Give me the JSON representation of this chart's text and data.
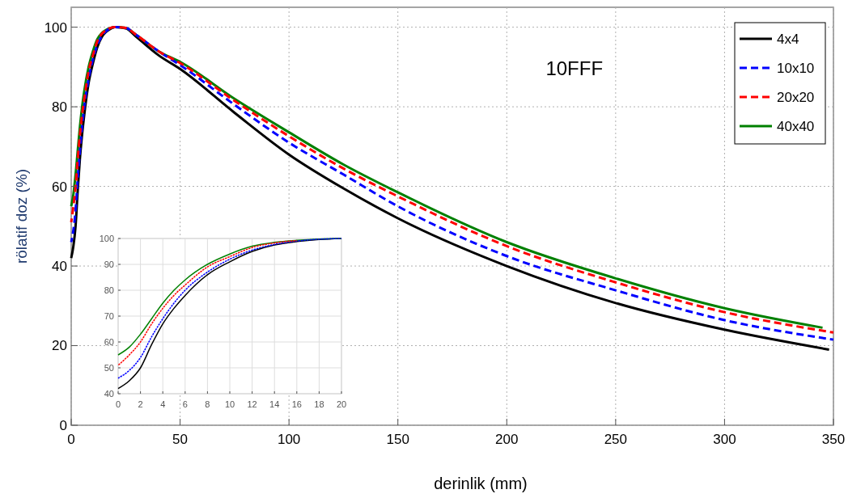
{
  "chart_data": [
    {
      "type": "line",
      "title": "10FFF",
      "xlabel": "derinlik (mm)",
      "ylabel": "rölatif doz (%)",
      "xlim": [
        0,
        350
      ],
      "ylim": [
        0,
        105
      ],
      "xticks": [
        0,
        50,
        100,
        150,
        200,
        250,
        300,
        350
      ],
      "yticks": [
        0,
        20,
        40,
        60,
        80,
        100
      ],
      "grid": true,
      "legend": "top right",
      "series": [
        {
          "name": "4x4",
          "color": "#000000",
          "line_style": "solid",
          "x": [
            0,
            1,
            2,
            3,
            4,
            5,
            6,
            8,
            10,
            12,
            14,
            16,
            18,
            20,
            25,
            30,
            40,
            50,
            75,
            100,
            125,
            150,
            200,
            250,
            300,
            348
          ],
          "values": [
            42,
            45,
            50,
            59,
            67,
            73,
            78,
            86,
            91,
            95,
            97.5,
            98.8,
            99.6,
            100,
            99.7,
            97.5,
            93,
            89.5,
            78.5,
            68,
            59.5,
            52,
            40,
            30.7,
            24,
            19
          ]
        },
        {
          "name": "10x10",
          "color": "#0000ff",
          "line_style": "dashed",
          "x": [
            0,
            1,
            2,
            3,
            4,
            5,
            6,
            8,
            10,
            12,
            14,
            16,
            18,
            20,
            25,
            30,
            40,
            50,
            75,
            100,
            125,
            150,
            200,
            250,
            300,
            350
          ],
          "values": [
            46,
            49,
            54,
            62,
            69,
            75,
            80,
            87,
            92,
            95.5,
            97.7,
            99,
            99.7,
            100,
            99.8,
            98,
            94,
            90.5,
            80.5,
            71,
            63,
            55,
            42.5,
            33.9,
            26.4,
            21.5
          ]
        },
        {
          "name": "20x20",
          "color": "#ff0000",
          "line_style": "dashed",
          "x": [
            0,
            1,
            2,
            3,
            4,
            5,
            6,
            8,
            10,
            12,
            14,
            16,
            18,
            20,
            25,
            30,
            40,
            50,
            75,
            100,
            125,
            150,
            200,
            250,
            300,
            350
          ],
          "values": [
            51,
            55,
            60,
            67,
            73,
            78,
            82,
            89,
            93,
            96.5,
            98.3,
            99.2,
            99.8,
            100,
            99.8,
            98,
            94,
            91,
            81.5,
            72.6,
            64.5,
            57.5,
            45,
            35.9,
            28.4,
            23.3
          ]
        },
        {
          "name": "40x40",
          "color": "#008000",
          "line_style": "solid",
          "x": [
            0,
            1,
            2,
            3,
            4,
            5,
            6,
            8,
            10,
            12,
            14,
            16,
            18,
            20,
            25,
            30,
            40,
            50,
            75,
            100,
            125,
            150,
            200,
            250,
            300,
            345
          ],
          "values": [
            55,
            58,
            63,
            69,
            75,
            80,
            84,
            90,
            94,
            97,
            98.5,
            99.3,
            99.8,
            100,
            99.8,
            98,
            94,
            91.3,
            82,
            73.6,
            65.5,
            58.5,
            46,
            36.9,
            29.4,
            24.5
          ]
        }
      ]
    },
    {
      "type": "line",
      "xlim": [
        0,
        20
      ],
      "ylim": [
        40,
        100
      ],
      "xticks": [
        0,
        2,
        4,
        6,
        8,
        10,
        12,
        14,
        16,
        18,
        20
      ],
      "yticks": [
        40,
        50,
        60,
        70,
        80,
        90,
        100
      ],
      "grid": true,
      "series": [
        {
          "color": "#000000",
          "line_style": "solid",
          "x": [
            0,
            1,
            2,
            3,
            4,
            5,
            6,
            8,
            10,
            12,
            14,
            16,
            18,
            20
          ],
          "values": [
            42,
            45,
            50,
            59,
            67,
            73,
            78,
            86,
            91,
            95,
            97.5,
            98.8,
            99.6,
            100
          ]
        },
        {
          "color": "#0000ff",
          "line_style": "dashed",
          "x": [
            0,
            1,
            2,
            3,
            4,
            5,
            6,
            8,
            10,
            12,
            14,
            16,
            18,
            20
          ],
          "values": [
            46,
            49,
            54,
            62,
            69,
            75,
            80,
            87,
            92,
            95.5,
            97.7,
            99,
            99.7,
            100
          ]
        },
        {
          "color": "#ff0000",
          "line_style": "dashed",
          "x": [
            0,
            1,
            2,
            3,
            4,
            5,
            6,
            8,
            10,
            12,
            14,
            16
          ],
          "values": [
            51,
            55,
            60,
            67,
            73,
            78,
            82,
            89,
            93,
            96.5,
            98.3,
            99.2
          ]
        },
        {
          "color": "#008000",
          "line_style": "solid",
          "x": [
            0,
            1,
            2,
            3,
            4,
            5,
            6,
            8,
            10,
            12,
            14,
            16,
            18,
            20
          ],
          "values": [
            55,
            58,
            63,
            69,
            75,
            80,
            84,
            90,
            94,
            97,
            98.5,
            99.3,
            99.8,
            100
          ]
        }
      ]
    }
  ]
}
